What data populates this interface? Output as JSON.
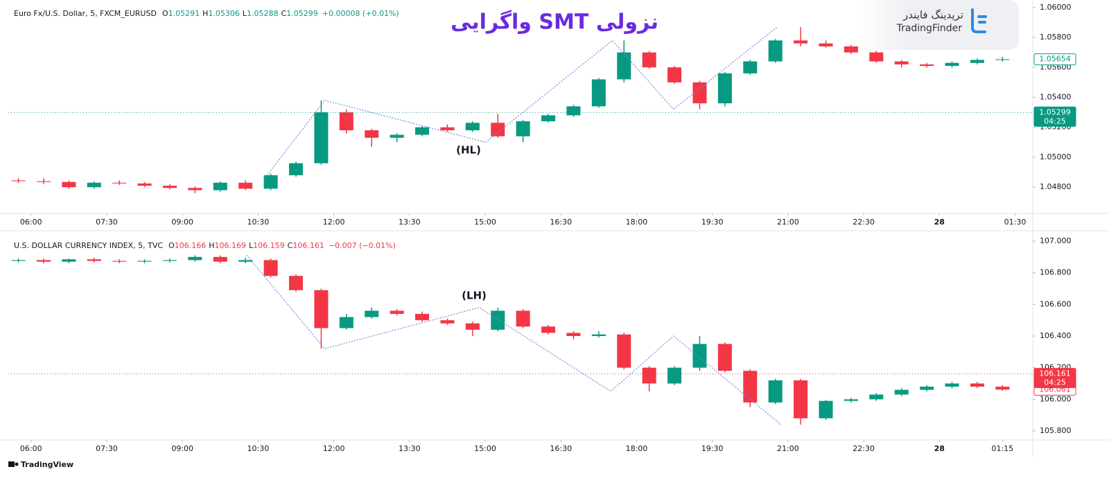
{
  "header": {
    "title": "واگرایی SMT نزولی",
    "logo_fa": "تریدینگ فایندر",
    "logo_en": "TradingFinder"
  },
  "footer": "TradingView",
  "chart_data": [
    {
      "type": "candlestick",
      "title": "Euro Fx/U.S. Dollar, 5, FXCM_EURUSD",
      "legend": {
        "color": "#089981",
        "items": [
          {
            "key": "O",
            "value": 1.05291
          },
          {
            "key": "H",
            "value": 1.05306
          },
          {
            "key": "L",
            "value": 1.05288
          },
          {
            "key": "C",
            "value": 1.05299
          }
        ],
        "change": "+0.00008 (+0.01%)"
      },
      "up_color": "#089981",
      "down_color": "#f23645",
      "x": [
        5.75,
        6.25,
        6.75,
        7.25,
        7.75,
        8.25,
        8.75,
        9.25,
        9.75,
        10.25,
        10.75,
        11.25,
        11.75,
        12.25,
        12.75,
        13.25,
        13.75,
        14.25,
        14.75,
        15.25,
        15.75,
        16.25,
        16.75,
        17.25,
        17.75,
        18.25,
        18.75,
        19.25,
        19.75,
        20.25,
        20.75,
        21.25,
        21.75,
        22.25,
        22.75,
        23.25,
        23.75,
        24.25,
        24.75,
        25.25
      ],
      "open": [
        1.04845,
        1.0484,
        1.04835,
        1.048,
        1.0483,
        1.04825,
        1.0481,
        1.04795,
        1.0478,
        1.0483,
        1.0479,
        1.0488,
        1.0496,
        1.053,
        1.0518,
        1.0513,
        1.0515,
        1.052,
        1.0518,
        1.0523,
        1.0514,
        1.0524,
        1.0528,
        1.0534,
        1.0552,
        1.057,
        1.056,
        1.055,
        1.0536,
        1.0556,
        1.0564,
        1.0578,
        1.0576,
        1.0574,
        1.057,
        1.0564,
        1.0562,
        1.0561,
        1.0563,
        1.0565
      ],
      "high": [
        1.0486,
        1.0486,
        1.04845,
        1.0484,
        1.04845,
        1.04835,
        1.0482,
        1.04805,
        1.0484,
        1.04845,
        1.0489,
        1.0497,
        1.0538,
        1.0532,
        1.0519,
        1.0516,
        1.0521,
        1.0522,
        1.0524,
        1.0529,
        1.0525,
        1.0529,
        1.0535,
        1.0553,
        1.0578,
        1.0571,
        1.0561,
        1.0551,
        1.0557,
        1.0565,
        1.0579,
        1.0587,
        1.0578,
        1.0575,
        1.0571,
        1.0565,
        1.0563,
        1.0564,
        1.0566,
        1.0567
      ],
      "low": [
        1.0483,
        1.0482,
        1.0479,
        1.0479,
        1.04815,
        1.048,
        1.04785,
        1.0476,
        1.0477,
        1.0478,
        1.0478,
        1.0487,
        1.0495,
        1.0516,
        1.0507,
        1.051,
        1.0514,
        1.0517,
        1.0517,
        1.0513,
        1.051,
        1.0523,
        1.0527,
        1.0533,
        1.055,
        1.0559,
        1.0549,
        1.0532,
        1.0534,
        1.0555,
        1.0563,
        1.0574,
        1.0573,
        1.0569,
        1.0563,
        1.056,
        1.056,
        1.056,
        1.0562,
        1.0564
      ],
      "close": [
        1.0484,
        1.04835,
        1.048,
        1.0483,
        1.04825,
        1.0481,
        1.04795,
        1.0478,
        1.0483,
        1.0479,
        1.0488,
        1.0496,
        1.053,
        1.0518,
        1.0513,
        1.0515,
        1.052,
        1.0518,
        1.0523,
        1.0514,
        1.0524,
        1.0528,
        1.0534,
        1.0552,
        1.057,
        1.056,
        1.055,
        1.0536,
        1.0556,
        1.0564,
        1.0578,
        1.0576,
        1.0574,
        1.057,
        1.0564,
        1.0562,
        1.0561,
        1.0563,
        1.0565,
        1.05654
      ],
      "xlim": [
        5.55,
        25.85
      ],
      "ylim": [
        1.04625,
        1.0605
      ],
      "xticks": [
        {
          "value": 6,
          "label": "06:00"
        },
        {
          "value": 7.5,
          "label": "07:30"
        },
        {
          "value": 9,
          "label": "09:00"
        },
        {
          "value": 10.5,
          "label": "10:30"
        },
        {
          "value": 12,
          "label": "12:00"
        },
        {
          "value": 13.5,
          "label": "13:30"
        },
        {
          "value": 15,
          "label": "15:00"
        },
        {
          "value": 16.5,
          "label": "16:30"
        },
        {
          "value": 18,
          "label": "18:00"
        },
        {
          "value": 19.5,
          "label": "19:30"
        },
        {
          "value": 21,
          "label": "21:00"
        },
        {
          "value": 22.5,
          "label": "22:30"
        },
        {
          "value": 24,
          "label": "28",
          "bold": true
        },
        {
          "value": 25.5,
          "label": "01:30"
        }
      ],
      "yticks": [
        {
          "value": 1.048,
          "label": "1.04800"
        },
        {
          "value": 1.05,
          "label": "1.05000"
        },
        {
          "value": 1.052,
          "label": "1.05200"
        },
        {
          "value": 1.054,
          "label": "1.05400"
        },
        {
          "value": 1.056,
          "label": "1.05600"
        },
        {
          "value": 1.058,
          "label": "1.05800"
        },
        {
          "value": 1.06,
          "label": "1.06000"
        }
      ],
      "grid": false,
      "trendline": {
        "color": "#7b86d9",
        "x": [
          10.68,
          11.82,
          15.01,
          17.52,
          18.73,
          20.79
        ],
        "y": [
          1.0488,
          1.0538,
          1.051,
          1.0578,
          1.0532,
          1.0587
        ]
      },
      "annotation": {
        "text": "(HL)",
        "x": 14.67,
        "y": 1.05046
      },
      "price_tags": [
        {
          "value": 1.05654,
          "label": "1.05654",
          "color": "#089981",
          "filled": false
        },
        {
          "value": 1.05299,
          "label": "1.05299",
          "timer": "04:25",
          "color": "#089981",
          "filled": true,
          "line": true
        }
      ]
    },
    {
      "type": "candlestick",
      "title": "U.S. DOLLAR CURRENCY INDEX, 5, TVC",
      "legend": {
        "color": "#f23645",
        "items": [
          {
            "key": "O",
            "value": 106.166
          },
          {
            "key": "H",
            "value": 106.169
          },
          {
            "key": "L",
            "value": 106.159
          },
          {
            "key": "C",
            "value": 106.161
          }
        ],
        "change": "−0.007 (−0.01%)"
      },
      "up_color": "#089981",
      "down_color": "#f23645",
      "x": [
        5.75,
        6.25,
        6.75,
        7.25,
        7.75,
        8.25,
        8.75,
        9.25,
        9.75,
        10.25,
        10.75,
        11.25,
        11.75,
        12.25,
        12.75,
        13.25,
        13.75,
        14.25,
        14.75,
        15.25,
        15.75,
        16.25,
        16.75,
        17.25,
        17.75,
        18.25,
        18.75,
        19.25,
        19.75,
        20.25,
        20.75,
        21.25,
        21.75,
        22.25,
        22.75,
        23.25,
        23.75,
        24.25,
        24.75,
        25.25
      ],
      "open": [
        106.875,
        106.88,
        106.87,
        106.885,
        106.875,
        106.87,
        106.875,
        106.88,
        106.9,
        106.87,
        106.88,
        106.78,
        106.69,
        106.45,
        106.52,
        106.56,
        106.54,
        106.5,
        106.48,
        106.44,
        106.56,
        106.46,
        106.42,
        106.4,
        106.41,
        106.2,
        106.1,
        106.2,
        106.35,
        106.18,
        105.98,
        106.12,
        105.88,
        105.99,
        106,
        106.03,
        106.06,
        106.08,
        106.1,
        106.08
      ],
      "high": [
        106.89,
        106.89,
        106.89,
        106.895,
        106.885,
        106.885,
        106.89,
        106.91,
        106.91,
        106.895,
        106.89,
        106.79,
        106.7,
        106.54,
        106.58,
        106.57,
        106.555,
        106.51,
        106.49,
        106.58,
        106.57,
        106.47,
        106.43,
        106.43,
        106.42,
        106.21,
        106.21,
        106.4,
        106.36,
        106.19,
        106.13,
        106.13,
        105.995,
        106.01,
        106.04,
        106.07,
        106.09,
        106.11,
        106.11,
        106.09
      ],
      "low": [
        106.865,
        106.86,
        106.86,
        106.865,
        106.86,
        106.86,
        106.865,
        106.87,
        106.86,
        106.86,
        106.77,
        106.68,
        106.32,
        106.44,
        106.51,
        106.53,
        106.49,
        106.47,
        106.4,
        106.43,
        106.45,
        106.41,
        106.38,
        106.39,
        106.19,
        106.05,
        106.09,
        106.18,
        106.17,
        105.95,
        105.97,
        105.84,
        105.87,
        105.98,
        105.99,
        106.02,
        106.05,
        106.07,
        106.07,
        106.055
      ],
      "close": [
        106.88,
        106.87,
        106.885,
        106.875,
        106.87,
        106.875,
        106.88,
        106.9,
        106.87,
        106.88,
        106.78,
        106.69,
        106.45,
        106.52,
        106.56,
        106.54,
        106.5,
        106.48,
        106.44,
        106.56,
        106.46,
        106.42,
        106.4,
        106.41,
        106.2,
        106.1,
        106.2,
        106.35,
        106.18,
        105.98,
        106.12,
        105.88,
        105.99,
        106,
        106.03,
        106.06,
        106.08,
        106.1,
        106.08,
        106.061
      ],
      "xlim": [
        5.55,
        25.85
      ],
      "ylim": [
        105.743,
        107.057
      ],
      "xticks": [
        {
          "value": 6,
          "label": "06:00"
        },
        {
          "value": 7.5,
          "label": "07:30"
        },
        {
          "value": 9,
          "label": "09:00"
        },
        {
          "value": 10.5,
          "label": "10:30"
        },
        {
          "value": 12,
          "label": "12:00"
        },
        {
          "value": 13.5,
          "label": "13:30"
        },
        {
          "value": 15,
          "label": "15:00"
        },
        {
          "value": 16.5,
          "label": "16:30"
        },
        {
          "value": 18,
          "label": "18:00"
        },
        {
          "value": 19.5,
          "label": "19:30"
        },
        {
          "value": 21,
          "label": "21:00"
        },
        {
          "value": 22.5,
          "label": "22:30"
        },
        {
          "value": 24,
          "label": "28",
          "bold": true
        },
        {
          "value": 25.25,
          "label": "01:15"
        }
      ],
      "yticks": [
        {
          "value": 105.8,
          "label": "105.800"
        },
        {
          "value": 106,
          "label": "106.000"
        },
        {
          "value": 106.2,
          "label": "106.200"
        },
        {
          "value": 106.4,
          "label": "106.400"
        },
        {
          "value": 106.6,
          "label": "106.600"
        },
        {
          "value": 106.8,
          "label": "106.800"
        },
        {
          "value": 107,
          "label": "107.000"
        }
      ],
      "grid": false,
      "trendline": {
        "color": "#7b86d9",
        "x": [
          10.27,
          11.82,
          14.88,
          17.49,
          18.73,
          20.86
        ],
        "y": [
          106.912,
          106.32,
          106.58,
          106.05,
          106.4,
          105.84
        ]
      },
      "annotation": {
        "text": "(LH)",
        "x": 14.78,
        "y": 106.653
      },
      "price_tags": [
        {
          "value": 106.061,
          "label": "106.061",
          "color": "#f23645",
          "filled": false
        },
        {
          "value": 106.161,
          "label": "106.161",
          "timer": "04:25",
          "color": "#f23645",
          "filled": true,
          "line": true
        }
      ]
    }
  ]
}
